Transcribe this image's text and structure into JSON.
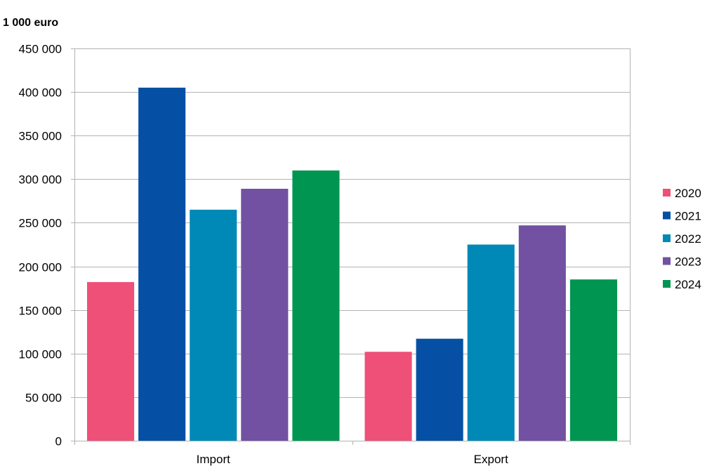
{
  "chart_data": {
    "type": "bar",
    "unit_label": "1 000 euro",
    "categories": [
      "Import",
      "Export"
    ],
    "series": [
      {
        "name": "2020",
        "color": "#ee5077",
        "values": [
          182000,
          102000
        ]
      },
      {
        "name": "2021",
        "color": "#0550a5",
        "values": [
          405000,
          117000
        ]
      },
      {
        "name": "2022",
        "color": "#0089b7",
        "values": [
          265000,
          225000
        ]
      },
      {
        "name": "2023",
        "color": "#7351a2",
        "values": [
          289000,
          247000
        ]
      },
      {
        "name": "2024",
        "color": "#009550",
        "values": [
          310000,
          185000
        ]
      }
    ],
    "ylim": [
      0,
      450000
    ],
    "yticks": [
      0,
      50000,
      100000,
      150000,
      200000,
      250000,
      300000,
      350000,
      400000,
      450000
    ],
    "ytick_labels": [
      "0",
      "50 000",
      "100 000",
      "150 000",
      "200 000",
      "250 000",
      "300 000",
      "350 000",
      "400 000",
      "450 000"
    ],
    "grid": true,
    "legend_position": "right"
  }
}
